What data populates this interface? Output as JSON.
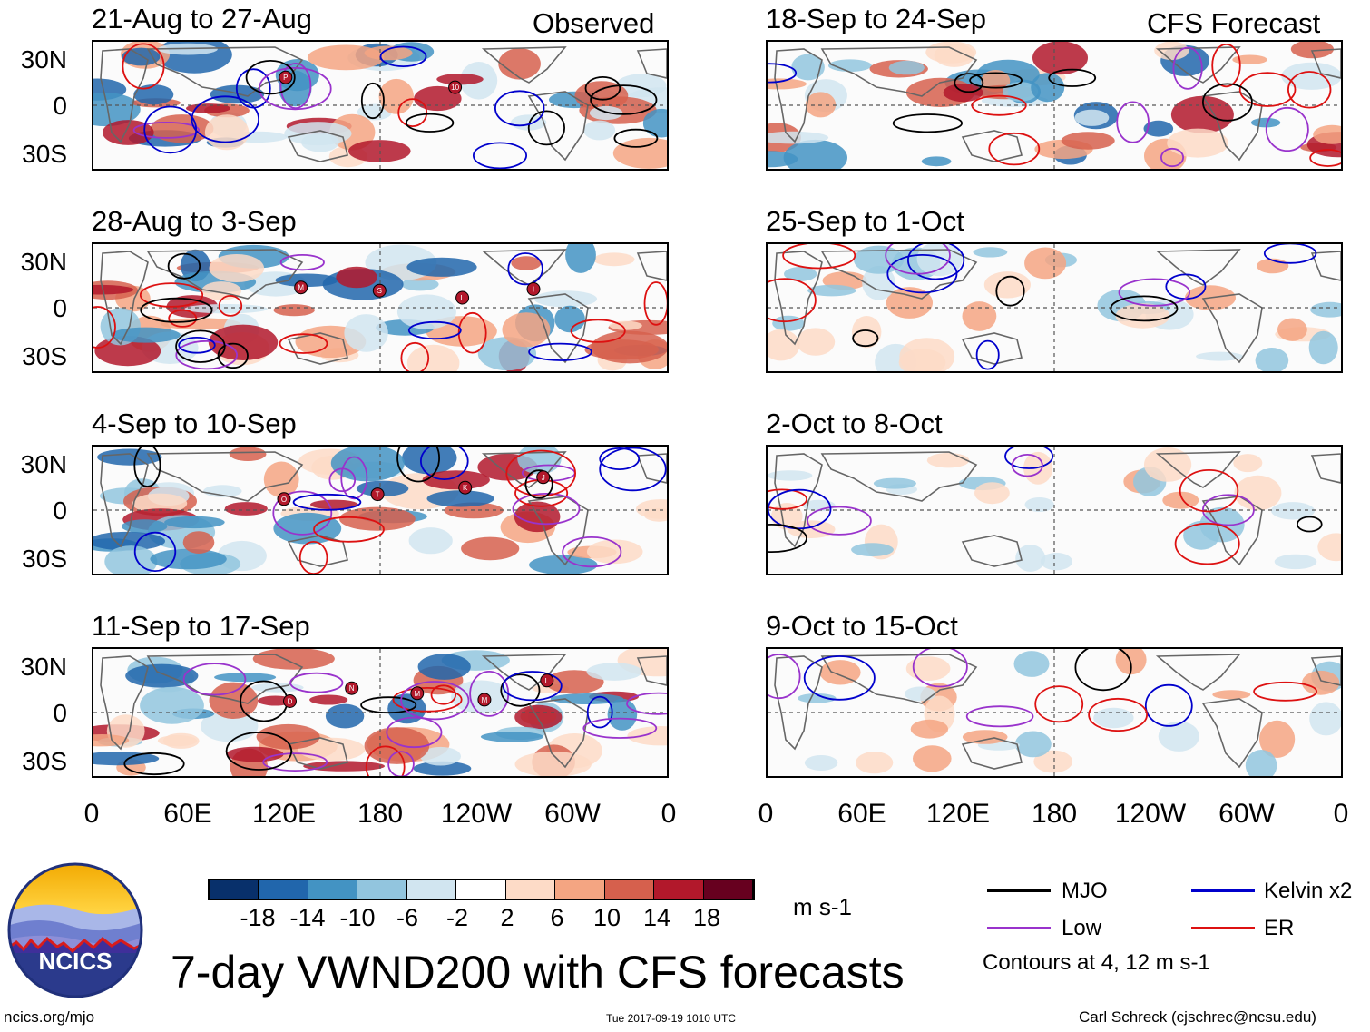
{
  "column_headers": {
    "observed": "Observed",
    "forecast": "CFS Forecast"
  },
  "observed_panels": [
    {
      "title": "21-Aug to 27-Aug"
    },
    {
      "title": "28-Aug to 3-Sep"
    },
    {
      "title": "4-Sep to 10-Sep"
    },
    {
      "title": "11-Sep to 17-Sep"
    }
  ],
  "forecast_panels": [
    {
      "title": "18-Sep to 24-Sep"
    },
    {
      "title": "25-Sep to 1-Oct"
    },
    {
      "title": "2-Oct to 8-Oct"
    },
    {
      "title": "9-Oct to 15-Oct"
    }
  ],
  "lat_labels": [
    "30N",
    "0",
    "30S"
  ],
  "lon_labels": [
    "0",
    "60E",
    "120E",
    "180",
    "120W",
    "60W",
    "0"
  ],
  "colorbar": {
    "labels": [
      "-18",
      "-14",
      "-10",
      "-6",
      "-2",
      "2",
      "6",
      "10",
      "14",
      "18"
    ],
    "units": "m s-1",
    "colors": [
      "#08306b",
      "#2166ac",
      "#4393c3",
      "#92c5de",
      "#d1e5f0",
      "#ffffff",
      "#fddbc7",
      "#f4a582",
      "#d6604d",
      "#b2182b",
      "#67001f"
    ]
  },
  "legend": {
    "items": [
      {
        "label": "MJO",
        "color": "#000000"
      },
      {
        "label": "Kelvin x2",
        "color": "#0000cc"
      },
      {
        "label": "Low",
        "color": "#9933cc"
      },
      {
        "label": "ER",
        "color": "#dd1111"
      }
    ],
    "note": "Contours at 4, 12 m s-1"
  },
  "logo_text": "NCICS",
  "main_title": "7-day VWND200 with CFS forecasts",
  "footer": {
    "url": "ncics.org/mjo",
    "timestamp": "Tue 2017-09-19 1010 UTC",
    "author": "Carl Schreck (cjschrec@ncsu.edu)"
  },
  "storm_labels": [
    [
      "P",
      "10"
    ],
    [
      "M",
      "S",
      "L",
      "I"
    ],
    [
      "O",
      "T",
      "K",
      "J"
    ],
    [
      "D",
      "N",
      "M",
      "M",
      "L"
    ]
  ]
}
